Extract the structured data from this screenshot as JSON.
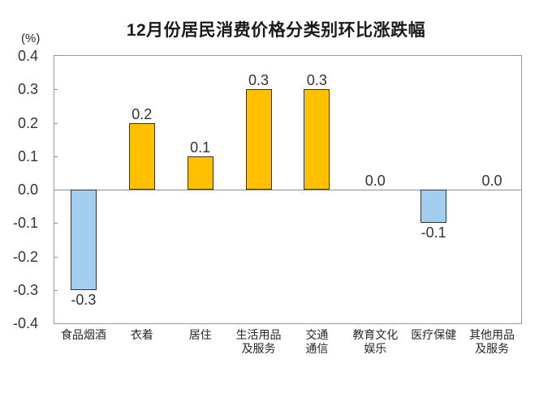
{
  "chart_data": {
    "type": "bar",
    "title": "12月份居民消费价格分类别环比涨跌幅",
    "xlabel": "",
    "ylabel": "(%)",
    "ylim": [
      -0.4,
      0.4
    ],
    "ytick_step": 0.1,
    "yticks": [
      "0.4",
      "0.3",
      "0.2",
      "0.1",
      "0.0",
      "-0.1",
      "-0.2",
      "-0.3",
      "-0.4"
    ],
    "grid": false,
    "legend": "none",
    "categories": [
      "食品烟酒",
      "衣着",
      "居住",
      "生活用品及服务",
      "交通通信",
      "教育文化娱乐",
      "医疗保健",
      "其他用品及服务"
    ],
    "category_label_lines": [
      [
        "食品烟酒"
      ],
      [
        "衣着"
      ],
      [
        "居住"
      ],
      [
        "生活用品",
        "及服务"
      ],
      [
        "交通",
        "通信"
      ],
      [
        "教育文化",
        "娱乐"
      ],
      [
        "医疗保健"
      ],
      [
        "其他用品",
        "及服务"
      ]
    ],
    "values": [
      -0.3,
      0.2,
      0.1,
      0.3,
      0.3,
      0.0,
      -0.1,
      0.0
    ],
    "value_labels": [
      "-0.3",
      "0.2",
      "0.1",
      "0.3",
      "0.3",
      "0.0",
      "-0.1",
      "0.0"
    ],
    "colors": {
      "positive": "#FFC000",
      "negative": "#A4CDF2",
      "bar_border": "#333333",
      "axis": "#999999",
      "text": "#262626"
    }
  }
}
